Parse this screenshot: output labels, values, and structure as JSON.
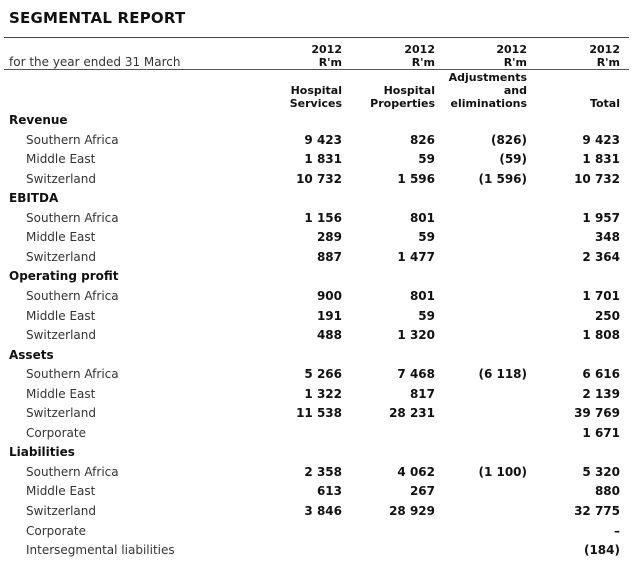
{
  "title": "SEGMENTAL REPORT",
  "subtitle": "for the year ended 31 March",
  "columns": [
    {
      "year": "2012",
      "unit": "R'm",
      "name_lines": [
        "Hospital",
        "Services"
      ]
    },
    {
      "year": "2012",
      "unit": "R'm",
      "name_lines": [
        "Hospital",
        "Properties"
      ]
    },
    {
      "year": "2012",
      "unit": "R'm",
      "name_lines": [
        "Adjustments",
        "and",
        "eliminations"
      ]
    },
    {
      "year": "2012",
      "unit": "R'm",
      "name_lines": [
        "Total"
      ]
    }
  ],
  "sections": [
    {
      "heading": "Revenue",
      "rows": [
        {
          "label": "Southern Africa",
          "values": [
            "9 423",
            "826",
            "(826)",
            "9 423"
          ]
        },
        {
          "label": "Middle East",
          "values": [
            "1 831",
            "59",
            "(59)",
            "1 831"
          ]
        },
        {
          "label": "Switzerland",
          "values": [
            "10 732",
            "1 596",
            "(1 596)",
            "10 732"
          ]
        }
      ]
    },
    {
      "heading": "EBITDA",
      "rows": [
        {
          "label": "Southern Africa",
          "values": [
            "1 156",
            "801",
            "",
            "1 957"
          ]
        },
        {
          "label": "Middle East",
          "values": [
            "289",
            "59",
            "",
            "348"
          ]
        },
        {
          "label": "Switzerland",
          "values": [
            "887",
            "1 477",
            "",
            "2 364"
          ]
        }
      ]
    },
    {
      "heading": "Operating profit",
      "rows": [
        {
          "label": "Southern Africa",
          "values": [
            "900",
            "801",
            "",
            "1 701"
          ]
        },
        {
          "label": "Middle East",
          "values": [
            "191",
            "59",
            "",
            "250"
          ]
        },
        {
          "label": "Switzerland",
          "values": [
            "488",
            "1 320",
            "",
            "1 808"
          ]
        }
      ]
    },
    {
      "heading": "Assets",
      "rows": [
        {
          "label": "Southern Africa",
          "values": [
            "5 266",
            "7 468",
            "(6 118)",
            "6 616"
          ]
        },
        {
          "label": "Middle East",
          "values": [
            "1 322",
            "817",
            "",
            "2 139"
          ]
        },
        {
          "label": "Switzerland",
          "values": [
            "11 538",
            "28 231",
            "",
            "39 769"
          ]
        },
        {
          "label": "Corporate",
          "values": [
            "",
            "",
            "",
            "1 671"
          ]
        }
      ]
    },
    {
      "heading": "Liabilities",
      "rows": [
        {
          "label": "Southern Africa",
          "values": [
            "2 358",
            "4 062",
            "(1 100)",
            "5 320"
          ]
        },
        {
          "label": "Middle East",
          "values": [
            "613",
            "267",
            "",
            "880"
          ]
        },
        {
          "label": "Switzerland",
          "values": [
            "3 846",
            "28 929",
            "",
            "32 775"
          ]
        },
        {
          "label": "Corporate",
          "values": [
            "",
            "",
            "",
            "–"
          ]
        },
        {
          "label": "Intersegmental liabilities",
          "values": [
            "",
            "",
            "",
            "(184)"
          ]
        }
      ]
    }
  ]
}
